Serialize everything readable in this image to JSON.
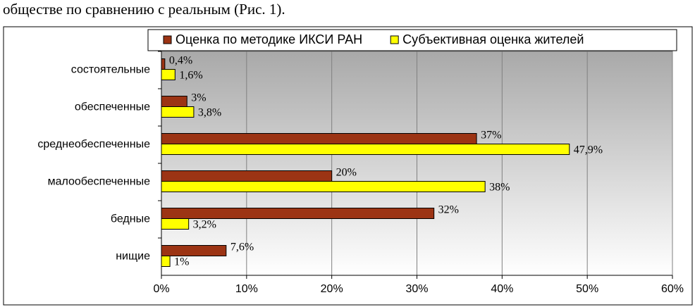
{
  "text": "обществе по сравнению с реальным (Рис. 1).",
  "chart_data": {
    "type": "hbar",
    "categories": [
      "состоятельные",
      "обеспеченные",
      "среднеобеспеченные",
      "малообеспеченные",
      "бедные",
      "нищие"
    ],
    "series": [
      {
        "name": "Оценка по методике ИКСИ РАН",
        "color": "#9c3414",
        "values": [
          0.4,
          3,
          37,
          20,
          32,
          7.6
        ],
        "value_labels": [
          "0,4%",
          "3%",
          "37%",
          "20%",
          "32%",
          "7,6%"
        ]
      },
      {
        "name": "Субъективная оценка жителей",
        "color": "#ffff00",
        "values": [
          1.6,
          3.8,
          47.9,
          38,
          3.2,
          1
        ],
        "value_labels": [
          "1,6%",
          "3,8%",
          "47,9%",
          "38%",
          "3,2%",
          "1%"
        ]
      }
    ],
    "xlim": [
      0,
      60
    ],
    "xticks": [
      {
        "value": 0,
        "label": "0%"
      },
      {
        "value": 10,
        "label": "10%"
      },
      {
        "value": 20,
        "label": "20%"
      },
      {
        "value": 30,
        "label": "30%"
      },
      {
        "value": 40,
        "label": "40%"
      },
      {
        "value": 50,
        "label": "50%"
      },
      {
        "value": 60,
        "label": "60%"
      }
    ],
    "grid": true,
    "legend": "top"
  }
}
